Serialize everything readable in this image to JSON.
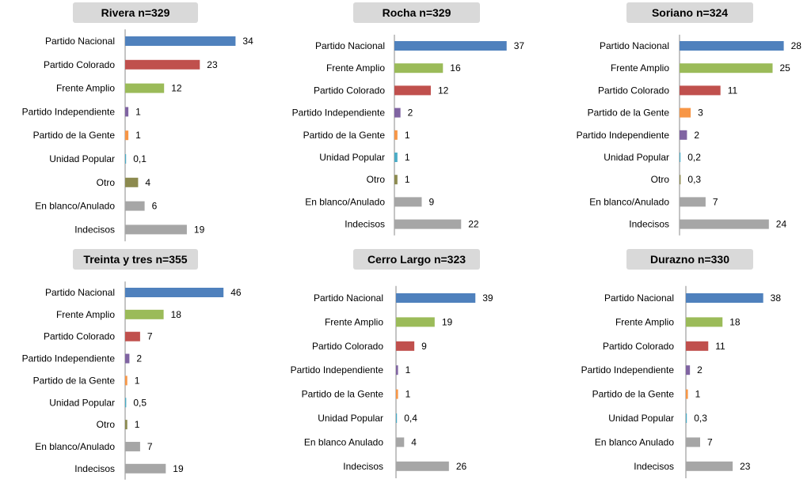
{
  "colors": {
    "Partido Nacional": "#4f81bd",
    "Partido Colorado": "#c0504d",
    "Frente Amplio": "#9bbb59",
    "Partido Independiente": "#8064a2",
    "Partido de la Gente": "#f79646",
    "Unidad Popular": "#4bacc6",
    "Otro": "#8c8a4f",
    "En blanco/Anulado": "#a6a6a6",
    "Indecisos": "#a6a6a6"
  },
  "chart_data": [
    {
      "type": "bar",
      "orientation": "horizontal",
      "title": "Rivera n=329",
      "categories": [
        "Partido Nacional",
        "Partido Colorado",
        "Frente Amplio",
        "Partido Independiente",
        "Partido de la Gente",
        "Unidad Popular",
        "Otro",
        "En blanco/Anulado",
        "Indecisos"
      ],
      "labels": [
        "34",
        "23",
        "12",
        "1",
        "1",
        "0,1",
        "4",
        "6",
        "19"
      ],
      "values": [
        34,
        23,
        12,
        1,
        1,
        0.1,
        4,
        6,
        19
      ],
      "color_keys": [
        "Partido Nacional",
        "Partido Colorado",
        "Frente Amplio",
        "Partido Independiente",
        "Partido de la Gente",
        "Unidad Popular",
        "Otro",
        "En blanco/Anulado",
        "Indecisos"
      ]
    },
    {
      "type": "bar",
      "orientation": "horizontal",
      "title": "Rocha n=329",
      "categories": [
        "Partido Nacional",
        "Frente Amplio",
        "Partido Colorado",
        "Partido Independiente",
        "Partido de la Gente",
        "Unidad Popular",
        "Otro",
        "En blanco/Anulado",
        "Indecisos"
      ],
      "labels": [
        "37",
        "16",
        "12",
        "2",
        "1",
        "1",
        "1",
        "9",
        "22"
      ],
      "values": [
        37,
        16,
        12,
        2,
        1,
        1,
        1,
        9,
        22
      ],
      "color_keys": [
        "Partido Nacional",
        "Frente Amplio",
        "Partido Colorado",
        "Partido Independiente",
        "Partido de la Gente",
        "Unidad Popular",
        "Otro",
        "En blanco/Anulado",
        "Indecisos"
      ]
    },
    {
      "type": "bar",
      "orientation": "horizontal",
      "title": "Soriano n=324",
      "categories": [
        "Partido Nacional",
        "Frente Amplio",
        "Partido Colorado",
        "Partido de la Gente",
        "Partido Independiente",
        "Unidad Popular",
        "Otro",
        "En blanco/Anulado",
        "Indecisos"
      ],
      "labels": [
        "28",
        "25",
        "11",
        "3",
        "2",
        "0,2",
        "0,3",
        "7",
        "24"
      ],
      "values": [
        28,
        25,
        11,
        3,
        2,
        0.2,
        0.3,
        7,
        24
      ],
      "color_keys": [
        "Partido Nacional",
        "Frente Amplio",
        "Partido Colorado",
        "Partido de la Gente",
        "Partido Independiente",
        "Unidad Popular",
        "Otro",
        "En blanco/Anulado",
        "Indecisos"
      ]
    },
    {
      "type": "bar",
      "orientation": "horizontal",
      "title": "Treinta y tres n=355",
      "categories": [
        "Partido Nacional",
        "Frente Amplio",
        "Partido Colorado",
        "Partido Independiente",
        "Partido de la Gente",
        "Unidad Popular",
        "Otro",
        "En blanco/Anulado",
        "Indecisos"
      ],
      "labels": [
        "46",
        "18",
        "7",
        "2",
        "1",
        "0,5",
        "1",
        "7",
        "19"
      ],
      "values": [
        46,
        18,
        7,
        2,
        1,
        0.5,
        1,
        7,
        19
      ],
      "color_keys": [
        "Partido Nacional",
        "Frente Amplio",
        "Partido Colorado",
        "Partido Independiente",
        "Partido de la Gente",
        "Unidad Popular",
        "Otro",
        "En blanco/Anulado",
        "Indecisos"
      ]
    },
    {
      "type": "bar",
      "orientation": "horizontal",
      "title": "Cerro Largo n=323",
      "categories": [
        "Partido Nacional",
        "Frente Amplio",
        "Partido Colorado",
        "Partido Independiente",
        "Partido de la Gente",
        "Unidad Popular",
        "En blanco Anulado",
        "Indecisos"
      ],
      "labels": [
        "39",
        "19",
        "9",
        "1",
        "1",
        "0,4",
        "4",
        "26"
      ],
      "values": [
        39,
        19,
        9,
        1,
        1,
        0.4,
        4,
        26
      ],
      "color_keys": [
        "Partido Nacional",
        "Frente Amplio",
        "Partido Colorado",
        "Partido Independiente",
        "Partido de la Gente",
        "Unidad Popular",
        "En blanco/Anulado",
        "Indecisos"
      ]
    },
    {
      "type": "bar",
      "orientation": "horizontal",
      "title": "Durazno n=330",
      "categories": [
        "Partido Nacional",
        "Frente Amplio",
        "Partido Colorado",
        "Partido Independiente",
        "Partido de la Gente",
        "Unidad Popular",
        "En blanco Anulado",
        "Indecisos"
      ],
      "labels": [
        "38",
        "18",
        "11",
        "2",
        "1",
        "0,3",
        "7",
        "23"
      ],
      "values": [
        38,
        18,
        11,
        2,
        1,
        0.3,
        7,
        23
      ],
      "color_keys": [
        "Partido Nacional",
        "Frente Amplio",
        "Partido Colorado",
        "Partido Independiente",
        "Partido de la Gente",
        "Unidad Popular",
        "En blanco/Anulado",
        "Indecisos"
      ]
    }
  ]
}
